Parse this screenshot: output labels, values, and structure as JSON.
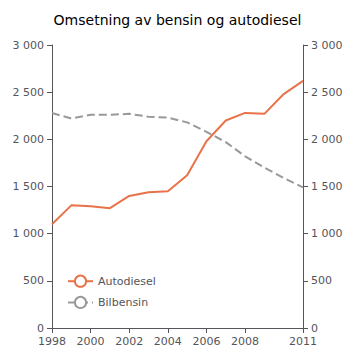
{
  "chart_data": {
    "type": "line",
    "title": "Omsetning av bensin og autodiesel",
    "x": [
      1998,
      1999,
      2000,
      2001,
      2002,
      2003,
      2004,
      2005,
      2006,
      2007,
      2008,
      2009,
      2010,
      2011
    ],
    "series": [
      {
        "name": "Autodiesel",
        "color": "#E8734A",
        "line_style": "solid",
        "values": [
          1100,
          1300,
          1290,
          1270,
          1400,
          1440,
          1450,
          1620,
          1980,
          2200,
          2280,
          2270,
          2480,
          2620
        ]
      },
      {
        "name": "Bilbensin",
        "color": "#999999",
        "line_style": "dashed",
        "values": [
          2280,
          2220,
          2260,
          2260,
          2270,
          2240,
          2230,
          2180,
          2080,
          1970,
          1820,
          1700,
          1590,
          1490
        ]
      }
    ],
    "xlim": [
      1998,
      2011
    ],
    "xticks": [
      1998,
      2000,
      2002,
      2004,
      2006,
      2008,
      2011
    ],
    "ylim": [
      0,
      3000
    ],
    "yticks": [
      0,
      500,
      {
        "value": 1000,
        "label": "1 000"
      },
      {
        "value": 1500,
        "label": "1 500"
      },
      {
        "value": 2000,
        "label": "2 000"
      },
      {
        "value": 2500,
        "label": "2 500"
      },
      {
        "value": 3000,
        "label": "3 000"
      }
    ],
    "y2lim": [
      0,
      3000
    ],
    "y2ticks": [
      0,
      500,
      {
        "value": 1000,
        "label": "1 000"
      },
      {
        "value": 1500,
        "label": "1 500"
      },
      {
        "value": 2000,
        "label": "2 000"
      },
      {
        "value": 2500,
        "label": "2 500"
      },
      {
        "value": 3000,
        "label": "3 000"
      }
    ],
    "grid": false,
    "legend": "lower left"
  }
}
